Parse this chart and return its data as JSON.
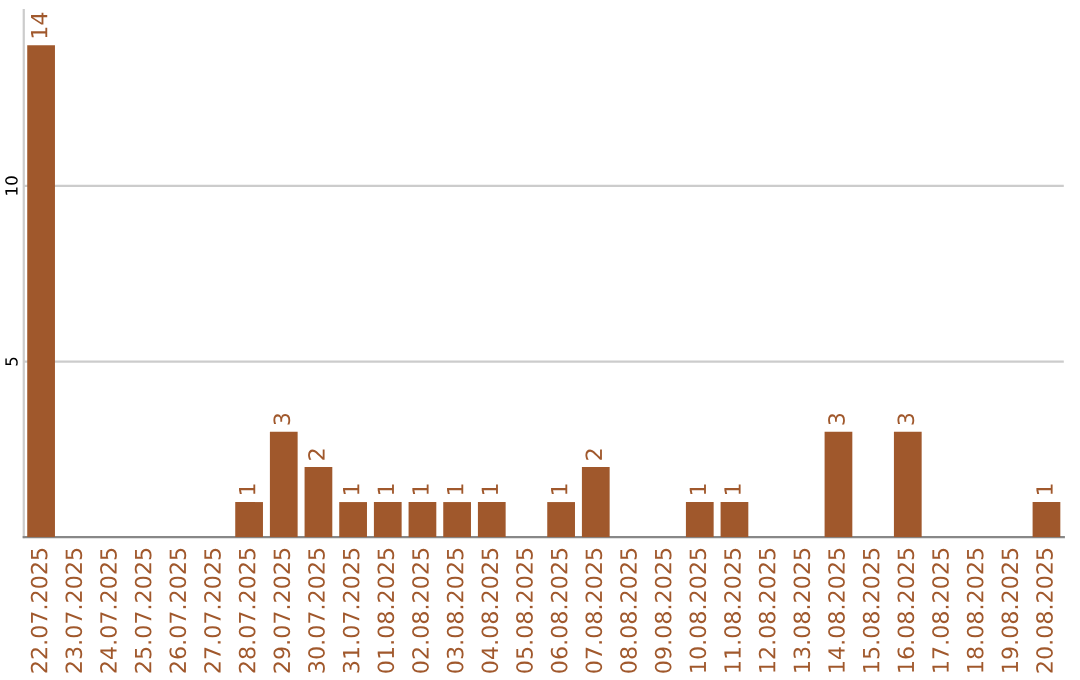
{
  "chart_data": {
    "type": "bar",
    "categories": [
      "22.07.2025",
      "23.07.2025",
      "24.07.2025",
      "25.07.2025",
      "26.07.2025",
      "27.07.2025",
      "28.07.2025",
      "29.07.2025",
      "30.07.2025",
      "31.07.2025",
      "01.08.2025",
      "02.08.2025",
      "03.08.2025",
      "04.08.2025",
      "05.08.2025",
      "06.08.2025",
      "07.08.2025",
      "08.08.2025",
      "09.08.2025",
      "10.08.2025",
      "11.08.2025",
      "12.08.2025",
      "13.08.2025",
      "14.08.2025",
      "15.08.2025",
      "16.08.2025",
      "17.08.2025",
      "18.08.2025",
      "19.08.2025",
      "20.08.2025"
    ],
    "values": [
      14,
      0,
      0,
      0,
      0,
      0,
      1,
      3,
      2,
      1,
      1,
      1,
      1,
      1,
      0,
      1,
      2,
      0,
      0,
      1,
      1,
      0,
      0,
      3,
      0,
      3,
      0,
      0,
      0,
      1
    ],
    "value_labels": [
      "14",
      null,
      null,
      null,
      null,
      null,
      "1",
      "3",
      "2",
      "1",
      "1",
      "1",
      "1",
      "1",
      null,
      "1",
      "2",
      null,
      null,
      "1",
      "1",
      null,
      null,
      "3",
      null,
      "3",
      null,
      null,
      null,
      "1"
    ],
    "color": "#a0582c",
    "ylim": [
      0,
      15
    ],
    "yticks": [
      5,
      10
    ],
    "grid": "y"
  }
}
